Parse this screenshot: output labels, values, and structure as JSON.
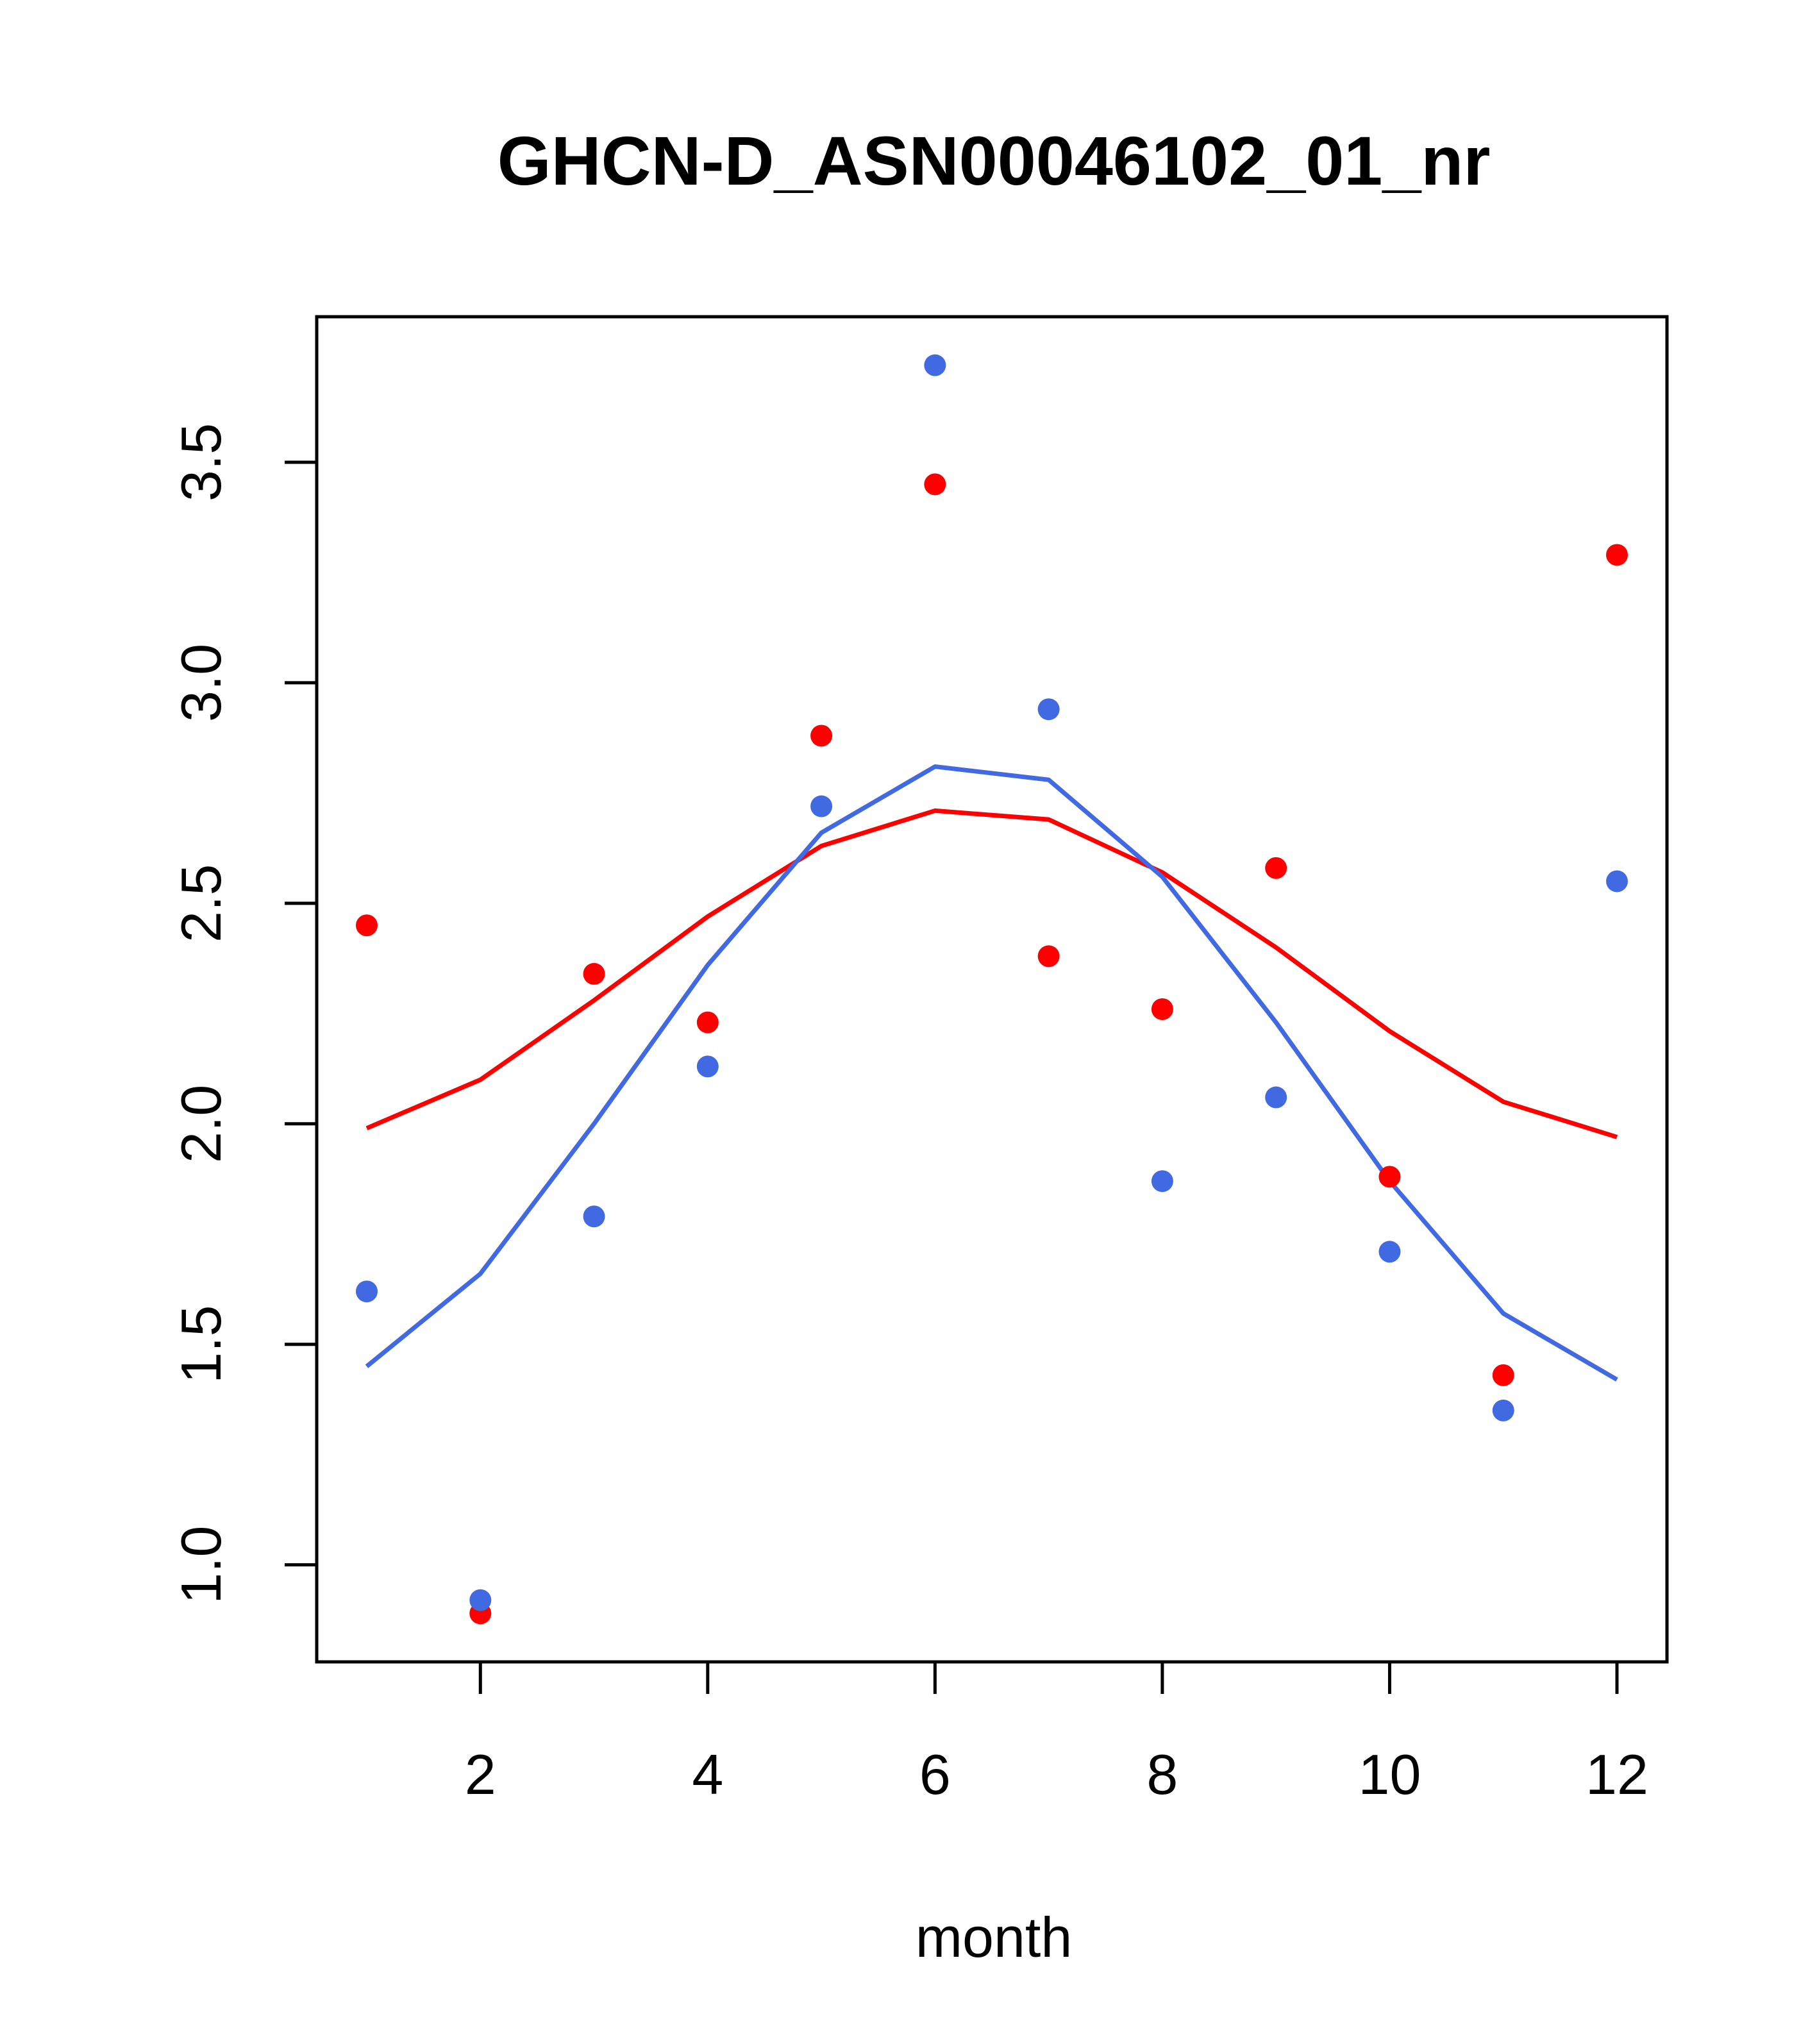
{
  "chart_data": {
    "type": "scatter",
    "title": "GHCN-D_ASN00046102_01_nr",
    "xlabel": "month",
    "ylabel": "",
    "xlim": [
      0.56,
      12.44
    ],
    "ylim": [
      0.78,
      3.83
    ],
    "x_ticks": [
      2,
      4,
      6,
      8,
      10,
      12
    ],
    "y_ticks": [
      1.0,
      1.5,
      2.0,
      2.5,
      3.0,
      3.5
    ],
    "x_tick_labels": [
      "2",
      "4",
      "6",
      "8",
      "10",
      "12"
    ],
    "y_tick_labels": [
      "1.0",
      "1.5",
      "2.0",
      "2.5",
      "3.0",
      "3.5"
    ],
    "grid": false,
    "x": [
      1,
      2,
      3,
      4,
      5,
      6,
      7,
      8,
      9,
      10,
      11,
      12
    ],
    "series": [
      {
        "color": "#ff0000",
        "points": [
          2.45,
          0.89,
          2.34,
          2.23,
          2.88,
          3.45,
          2.38,
          2.26,
          2.58,
          1.88,
          1.43,
          3.29
        ],
        "fit": [
          1.99,
          2.1,
          2.28,
          2.47,
          2.63,
          2.71,
          2.69,
          2.57,
          2.4,
          2.21,
          2.05,
          1.97
        ]
      },
      {
        "color": "#4169e1",
        "points": [
          1.62,
          0.92,
          1.79,
          2.13,
          2.72,
          3.72,
          2.94,
          1.87,
          2.06,
          1.71,
          1.35,
          2.55
        ],
        "fit": [
          1.45,
          1.66,
          2.0,
          2.36,
          2.66,
          2.81,
          2.78,
          2.56,
          2.23,
          1.87,
          1.57,
          1.42
        ]
      }
    ]
  }
}
